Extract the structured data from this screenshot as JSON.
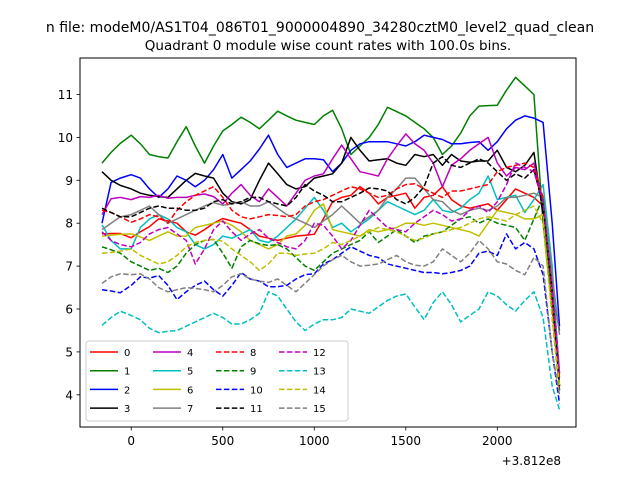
{
  "chart_data": {
    "type": "line",
    "suptitle": "n file: modeM0/AS1T04_086T01_9000004890_34280cztM0_level2_quad_clean",
    "title": "Quadrant 0 module wise count rates with 100.0s bins.",
    "xlabel": "",
    "ylabel": "",
    "x_offset_label": "+3.812e8",
    "xlim": [
      -280,
      2430
    ],
    "ylim": [
      3.25,
      11.85
    ],
    "xticks": [
      0,
      500,
      1000,
      1500,
      2000
    ],
    "xtick_labels": [
      "0",
      "500",
      "1000",
      "1500",
      "2000"
    ],
    "yticks": [
      4,
      5,
      6,
      7,
      8,
      9,
      10,
      11
    ],
    "ytick_labels": [
      "4",
      "5",
      "6",
      "7",
      "8",
      "9",
      "10",
      "11"
    ],
    "grid": false,
    "legend": {
      "location": "lower-left",
      "columns": 4
    },
    "x": [
      -160,
      -110,
      -60,
      0,
      50,
      100,
      150,
      200,
      250,
      300,
      350,
      400,
      450,
      500,
      550,
      600,
      650,
      700,
      750,
      800,
      850,
      900,
      950,
      1000,
      1050,
      1100,
      1150,
      1200,
      1250,
      1300,
      1350,
      1400,
      1450,
      1500,
      1550,
      1600,
      1650,
      1700,
      1750,
      1800,
      1850,
      1900,
      1950,
      2000,
      2050,
      2100,
      2150,
      2200,
      2250,
      2300,
      2340
    ],
    "series": [
      {
        "name": "0",
        "color": "#ff0000",
        "dash": "solid",
        "values": [
          7.75,
          7.76,
          7.76,
          7.66,
          7.8,
          7.92,
          8.1,
          8.05,
          8.0,
          7.8,
          7.72,
          7.85,
          8.0,
          8.11,
          8.05,
          8.0,
          7.85,
          7.7,
          7.65,
          7.6,
          7.65,
          7.7,
          7.72,
          7.74,
          8.1,
          8.5,
          8.6,
          8.65,
          8.85,
          8.7,
          8.45,
          8.6,
          8.65,
          8.7,
          8.35,
          8.6,
          8.65,
          8.85,
          8.55,
          8.4,
          8.35,
          8.4,
          8.45,
          8.3,
          8.55,
          8.8,
          8.7,
          8.6,
          8.4,
          6.5,
          4.1
        ]
      },
      {
        "name": "1",
        "color": "#008000",
        "dash": "solid",
        "values": [
          9.4,
          9.65,
          9.86,
          10.05,
          9.85,
          9.6,
          9.55,
          9.52,
          9.9,
          10.25,
          9.8,
          9.4,
          9.8,
          10.15,
          10.3,
          10.47,
          10.35,
          10.2,
          10.4,
          10.61,
          10.5,
          10.4,
          10.35,
          10.3,
          10.5,
          10.63,
          10.2,
          9.6,
          9.8,
          10.0,
          10.3,
          10.7,
          10.6,
          10.5,
          10.35,
          10.2,
          10.0,
          9.6,
          9.8,
          10.1,
          10.5,
          10.73,
          10.74,
          10.75,
          11.1,
          11.4,
          11.2,
          11.0,
          8.0,
          6.0,
          4.2
        ]
      },
      {
        "name": "2",
        "color": "#0000ff",
        "dash": "solid",
        "values": [
          8.0,
          8.95,
          9.05,
          9.13,
          9.05,
          8.8,
          8.6,
          8.8,
          9.1,
          9.0,
          8.85,
          9.0,
          9.25,
          9.6,
          9.05,
          9.25,
          9.45,
          9.73,
          10.05,
          9.6,
          9.3,
          9.4,
          9.5,
          9.5,
          9.48,
          9.2,
          9.4,
          9.7,
          9.85,
          9.9,
          9.9,
          9.9,
          9.85,
          9.8,
          9.9,
          10.05,
          10.0,
          9.95,
          9.85,
          9.85,
          9.88,
          9.9,
          9.7,
          9.9,
          10.2,
          10.4,
          10.5,
          10.45,
          10.35,
          8.0,
          5.6
        ]
      },
      {
        "name": "3",
        "color": "#000000",
        "dash": "solid",
        "values": [
          9.2,
          9.0,
          8.88,
          8.8,
          8.7,
          8.65,
          8.62,
          8.6,
          8.8,
          9.0,
          9.16,
          9.1,
          9.05,
          8.7,
          8.5,
          8.45,
          8.55,
          9.0,
          9.4,
          9.15,
          8.9,
          8.8,
          8.85,
          9.05,
          9.1,
          9.15,
          9.4,
          10.0,
          9.7,
          9.45,
          9.48,
          9.5,
          9.4,
          9.35,
          9.6,
          9.55,
          9.6,
          9.35,
          9.6,
          9.45,
          9.42,
          9.45,
          9.45,
          9.7,
          9.3,
          9.2,
          9.35,
          9.65,
          8.2,
          6.5,
          5.5
        ]
      },
      {
        "name": "4",
        "color": "#bf00bf",
        "dash": "solid",
        "values": [
          8.2,
          8.57,
          8.6,
          8.55,
          8.62,
          8.6,
          8.65,
          8.58,
          8.6,
          8.6,
          8.65,
          8.68,
          8.62,
          8.45,
          8.7,
          8.9,
          8.65,
          8.5,
          8.8,
          8.6,
          8.4,
          8.7,
          9.0,
          9.1,
          9.15,
          9.5,
          9.82,
          9.5,
          9.2,
          9.15,
          9.1,
          9.5,
          9.8,
          10.08,
          9.85,
          9.7,
          9.4,
          8.85,
          9.35,
          9.5,
          9.7,
          9.85,
          10.0,
          9.4,
          9.1,
          9.3,
          9.25,
          9.4,
          8.5,
          6.8,
          4.5
        ]
      },
      {
        "name": "5",
        "color": "#00bfbf",
        "dash": "solid",
        "values": [
          7.96,
          7.6,
          7.4,
          7.4,
          7.9,
          8.1,
          8.2,
          8.1,
          7.9,
          7.8,
          7.5,
          7.4,
          7.5,
          7.7,
          7.65,
          7.75,
          7.85,
          7.6,
          7.55,
          7.7,
          7.9,
          8.1,
          8.35,
          8.6,
          8.3,
          7.9,
          8.0,
          7.8,
          7.95,
          8.1,
          8.3,
          8.5,
          8.4,
          8.3,
          8.2,
          8.3,
          8.55,
          8.3,
          8.25,
          8.35,
          8.55,
          8.7,
          9.1,
          8.55,
          8.6,
          8.65,
          8.25,
          8.55,
          8.9,
          7.0,
          4.2
        ]
      },
      {
        "name": "6",
        "color": "#bfbf00",
        "dash": "solid",
        "values": [
          7.7,
          7.72,
          7.74,
          7.75,
          7.68,
          7.6,
          7.7,
          7.8,
          7.7,
          7.7,
          7.9,
          7.95,
          8.0,
          8.05,
          7.95,
          7.8,
          7.6,
          7.5,
          7.4,
          7.5,
          7.7,
          7.75,
          7.95,
          8.3,
          8.45,
          7.85,
          7.8,
          7.75,
          7.7,
          7.85,
          7.8,
          7.85,
          7.9,
          8.0,
          8.0,
          7.95,
          8.0,
          7.95,
          7.9,
          7.85,
          7.8,
          7.7,
          8.0,
          8.3,
          8.25,
          8.2,
          8.1,
          8.1,
          8.2,
          6.0,
          4.2
        ]
      },
      {
        "name": "7",
        "color": "#808080",
        "dash": "solid",
        "values": [
          7.85,
          8.0,
          8.15,
          8.2,
          8.3,
          8.4,
          8.2,
          8.0,
          8.1,
          8.2,
          8.3,
          8.4,
          8.48,
          8.42,
          8.45,
          8.5,
          8.4,
          8.4,
          8.5,
          8.35,
          8.2,
          8.1,
          8.0,
          7.9,
          8.05,
          8.2,
          8.4,
          8.2,
          8.0,
          8.15,
          8.3,
          8.6,
          8.8,
          9.05,
          9.05,
          8.8,
          8.55,
          8.5,
          8.3,
          8.2,
          8.3,
          8.35,
          8.3,
          8.4,
          8.6,
          8.6,
          8.65,
          8.7,
          8.6,
          6.8,
          5.4
        ]
      },
      {
        "name": "8",
        "color": "#ff0000",
        "dash": "dashed",
        "values": [
          8.3,
          8.25,
          8.15,
          8.02,
          8.1,
          8.2,
          8.15,
          8.0,
          8.3,
          8.5,
          8.65,
          8.75,
          8.85,
          8.6,
          8.3,
          8.15,
          8.1,
          8.15,
          8.2,
          8.18,
          8.15,
          8.2,
          8.4,
          8.5,
          8.55,
          8.65,
          8.75,
          8.85,
          8.8,
          8.7,
          8.6,
          8.65,
          8.8,
          8.9,
          8.92,
          8.8,
          8.7,
          8.6,
          8.75,
          8.75,
          8.8,
          8.85,
          8.9,
          9.2,
          9.3,
          9.35,
          9.4,
          9.3,
          8.6,
          6.0,
          4.4
        ]
      },
      {
        "name": "9",
        "color": "#008000",
        "dash": "dashed",
        "values": [
          7.45,
          7.38,
          7.3,
          7.1,
          7.0,
          6.9,
          6.95,
          6.85,
          7.0,
          7.3,
          7.5,
          7.6,
          7.62,
          7.3,
          6.95,
          7.45,
          7.6,
          7.52,
          7.48,
          7.5,
          7.4,
          7.2,
          7.0,
          6.9,
          7.1,
          7.3,
          7.4,
          7.5,
          7.6,
          7.8,
          7.55,
          7.7,
          7.85,
          7.7,
          7.55,
          7.7,
          7.75,
          7.8,
          7.95,
          8.1,
          8.15,
          8.0,
          8.1,
          8.0,
          7.95,
          7.9,
          7.6,
          8.1,
          8.6,
          5.8,
          4.1
        ]
      },
      {
        "name": "10",
        "color": "#0000ff",
        "dash": "dashed",
        "values": [
          6.45,
          6.42,
          6.38,
          6.55,
          6.75,
          6.72,
          6.78,
          6.55,
          6.22,
          6.4,
          6.55,
          6.65,
          6.45,
          6.3,
          6.55,
          6.85,
          6.7,
          6.65,
          6.52,
          6.52,
          6.55,
          6.7,
          6.8,
          6.82,
          7.05,
          7.15,
          7.3,
          7.45,
          7.35,
          7.25,
          7.2,
          7.05,
          7.0,
          6.95,
          6.9,
          6.85,
          6.85,
          6.82,
          6.85,
          6.9,
          7.0,
          7.3,
          7.35,
          7.25,
          7.75,
          7.4,
          7.55,
          7.4,
          6.8,
          5.0,
          3.8
        ]
      },
      {
        "name": "11",
        "color": "#000000",
        "dash": "dashed",
        "values": [
          8.35,
          8.25,
          8.15,
          8.15,
          8.25,
          8.35,
          8.4,
          8.35,
          8.35,
          8.3,
          8.3,
          8.35,
          8.5,
          8.55,
          8.45,
          8.5,
          8.6,
          8.6,
          8.5,
          8.45,
          8.4,
          8.6,
          8.9,
          8.75,
          8.65,
          8.5,
          8.5,
          8.6,
          8.7,
          8.82,
          8.8,
          8.75,
          8.55,
          8.45,
          8.6,
          8.85,
          9.4,
          9.55,
          9.35,
          9.3,
          9.4,
          9.5,
          9.4,
          9.2,
          9.0,
          9.15,
          9.05,
          9.25,
          8.4,
          6.4,
          4.2
        ]
      },
      {
        "name": "12",
        "color": "#bf00bf",
        "dash": "dashed",
        "values": [
          7.8,
          7.6,
          7.5,
          7.45,
          7.55,
          7.75,
          7.85,
          7.9,
          7.75,
          7.6,
          7.05,
          7.4,
          7.85,
          8.05,
          7.8,
          7.6,
          7.75,
          7.85,
          7.65,
          7.55,
          7.45,
          7.4,
          7.6,
          8.0,
          7.95,
          7.7,
          7.4,
          7.6,
          7.95,
          8.3,
          8.1,
          7.9,
          7.85,
          7.8,
          8.0,
          8.15,
          8.3,
          8.2,
          8.05,
          8.1,
          8.3,
          8.4,
          8.25,
          8.5,
          8.9,
          9.4,
          9.3,
          9.2,
          8.5,
          6.5,
          4.5
        ]
      },
      {
        "name": "13",
        "color": "#00bfbf",
        "dash": "dashed",
        "values": [
          5.62,
          5.8,
          5.95,
          5.85,
          5.75,
          5.55,
          5.45,
          5.48,
          5.5,
          5.6,
          5.7,
          5.8,
          5.9,
          5.8,
          5.65,
          5.65,
          5.75,
          5.9,
          6.4,
          6.3,
          6.0,
          5.7,
          5.5,
          5.65,
          5.75,
          5.75,
          5.8,
          6.0,
          5.95,
          5.9,
          6.05,
          6.2,
          6.3,
          6.35,
          6.05,
          5.75,
          6.15,
          6.4,
          6.1,
          5.7,
          5.85,
          6.0,
          6.4,
          6.3,
          6.1,
          5.95,
          6.2,
          6.4,
          5.8,
          4.2,
          3.65
        ]
      },
      {
        "name": "14",
        "color": "#bfbf00",
        "dash": "dashed",
        "values": [
          7.3,
          7.32,
          7.35,
          7.4,
          7.25,
          7.15,
          7.05,
          7.1,
          7.25,
          7.45,
          7.55,
          7.6,
          7.62,
          7.58,
          7.4,
          7.25,
          7.1,
          6.9,
          7.05,
          7.3,
          7.3,
          7.25,
          7.28,
          7.3,
          7.4,
          7.55,
          7.5,
          7.6,
          7.7,
          7.8,
          7.9,
          7.85,
          7.8,
          7.7,
          7.6,
          7.65,
          7.75,
          7.8,
          7.85,
          7.9,
          8.0,
          8.1,
          8.15,
          8.1,
          8.05,
          8.2,
          8.3,
          8.4,
          8.0,
          5.8,
          4.2
        ]
      },
      {
        "name": "15",
        "color": "#808080",
        "dash": "dashed",
        "values": [
          6.6,
          6.75,
          6.82,
          6.8,
          6.82,
          6.7,
          6.5,
          6.4,
          6.45,
          6.5,
          6.48,
          6.45,
          6.4,
          6.55,
          6.75,
          6.82,
          6.7,
          6.65,
          6.62,
          6.7,
          6.55,
          6.4,
          6.6,
          6.8,
          7.0,
          7.15,
          7.25,
          7.1,
          7.0,
          7.02,
          7.05,
          7.15,
          7.25,
          7.1,
          7.02,
          7.0,
          7.1,
          7.4,
          7.25,
          7.1,
          7.3,
          7.6,
          7.4,
          7.1,
          7.05,
          6.9,
          6.8,
          7.2,
          7.0,
          5.0,
          4.0
        ]
      }
    ]
  }
}
